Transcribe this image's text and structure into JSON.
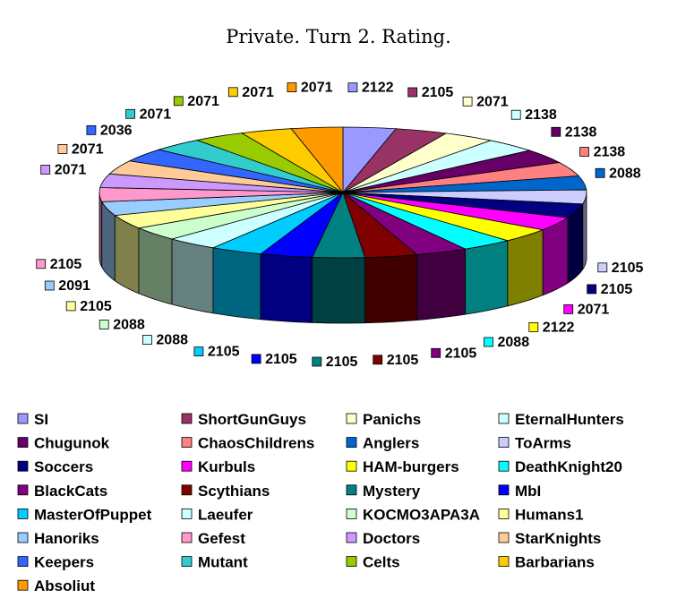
{
  "chart_data": {
    "type": "pie",
    "title": "Private. Turn 2. Rating.",
    "three_d": true,
    "legend_position": "bottom",
    "categories": [
      "SI",
      "ShortGunGuys",
      "Panichs",
      "EternalHunters",
      "Chugunok",
      "ChaosChildrens",
      "Anglers",
      "ToArms",
      "Soccers",
      "Kurbuls",
      "HAM-burgers",
      "DeathKnight20",
      "BlackCats",
      "Scythians",
      "Mystery",
      "MbI",
      "MasterOfPuppet",
      "Laeufer",
      "KOCMO3APA3A",
      "Humans1",
      "Hanoriks",
      "Gefest",
      "Doctors",
      "StarKnights",
      "Keepers",
      "Mutant",
      "Celts",
      "Barbarians",
      "Absoliut"
    ],
    "values": [
      2122,
      2105,
      2071,
      2138,
      2138,
      2138,
      2088,
      2105,
      2105,
      2071,
      2122,
      2088,
      2105,
      2105,
      2105,
      2105,
      2105,
      2088,
      2088,
      2105,
      2091,
      2105,
      2071,
      2071,
      2036,
      2071,
      2071,
      2071,
      2071
    ],
    "data_labels": [
      "2122",
      "2105",
      "2071",
      "2138",
      "2138",
      "2138",
      "2088",
      "2105",
      "2105",
      "2071",
      "2122",
      "2088",
      "2105",
      "2105",
      "2105",
      "2105",
      "2105",
      "2088",
      "2088",
      "2105",
      "2091",
      "2105",
      "2071",
      "2071",
      "2036",
      "2071",
      "2071",
      "2071",
      "2071"
    ],
    "colors": [
      "#9999FF",
      "#993366",
      "#FFFFCC",
      "#CCFFFF",
      "#660066",
      "#FF8080",
      "#0066CC",
      "#CCCCFF",
      "#000080",
      "#FF00FF",
      "#FFFF00",
      "#00FFFF",
      "#800080",
      "#800000",
      "#008080",
      "#0000FF",
      "#00CCFF",
      "#CCFFFF",
      "#CCFFCC",
      "#FFFF99",
      "#99CCFF",
      "#FF99CC",
      "#CC99FF",
      "#FFCC99",
      "#3366FF",
      "#33CCCC",
      "#99CC00",
      "#FFCC00",
      "#FF9900"
    ]
  }
}
